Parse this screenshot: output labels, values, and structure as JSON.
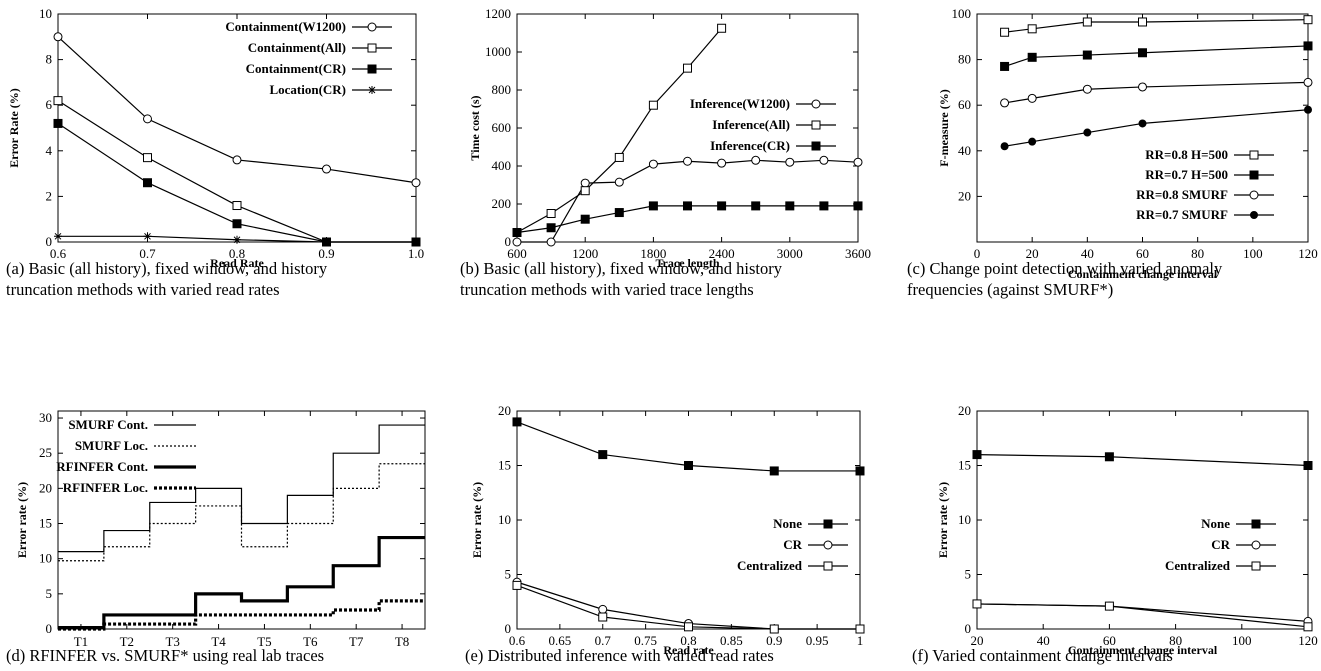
{
  "chart_data": [
    {
      "type": "line",
      "xlabel": "Read Rate",
      "ylabel": "Error Rate (%)",
      "x_ticks": [
        "0.6",
        "0.7",
        "0.8",
        "0.9",
        "1.0"
      ],
      "y_ticks": [
        "0",
        "2",
        "4",
        "6",
        "8",
        "10"
      ],
      "xlim": [
        0.6,
        1.0
      ],
      "ylim": [
        0,
        10
      ],
      "legend_position": "top-right",
      "caption": [
        "(a) Basic (all history), fixed window, and history",
        "truncation methods with varied read rates"
      ],
      "series": [
        {
          "name": "Containment(W1200)",
          "marker": "circle",
          "x": [
            0.6,
            0.7,
            0.8,
            0.9,
            1.0
          ],
          "y": [
            9.0,
            5.4,
            3.6,
            3.2,
            2.6
          ]
        },
        {
          "name": "Containment(All)",
          "marker": "square",
          "x": [
            0.6,
            0.7,
            0.8,
            0.9,
            1.0
          ],
          "y": [
            6.2,
            3.7,
            1.6,
            0,
            0
          ]
        },
        {
          "name": "Containment(CR)",
          "marker": "filled-square",
          "x": [
            0.6,
            0.7,
            0.8,
            0.9,
            1.0
          ],
          "y": [
            5.2,
            2.6,
            0.8,
            0,
            0
          ]
        },
        {
          "name": "Location(CR)",
          "marker": "star",
          "x": [
            0.6,
            0.7,
            0.8,
            0.9,
            1.0
          ],
          "y": [
            0.25,
            0.25,
            0.1,
            0,
            0
          ]
        }
      ]
    },
    {
      "type": "line",
      "xlabel": "Trace length",
      "ylabel": "Time cost (s)",
      "x_ticks": [
        "600",
        "1200",
        "1800",
        "2400",
        "3000",
        "3600"
      ],
      "y_ticks": [
        "0",
        "200",
        "400",
        "600",
        "800",
        "1000",
        "1200"
      ],
      "xlim": [
        600,
        3600
      ],
      "ylim": [
        0,
        1200
      ],
      "legend_position": "center-right",
      "caption": [
        "(b) Basic (all history), fixed window, and history",
        "truncation methods with varied trace lengths"
      ],
      "series": [
        {
          "name": "Inference(W1200)",
          "marker": "circle",
          "x": [
            600,
            900,
            1200,
            1500,
            1800,
            2100,
            2400,
            2700,
            3000,
            3300,
            3600
          ],
          "y": [
            0,
            0,
            310,
            315,
            410,
            425,
            415,
            430,
            420,
            430,
            420
          ]
        },
        {
          "name": "Inference(All)",
          "marker": "square",
          "x": [
            600,
            900,
            1200,
            1500,
            1800,
            2100,
            2400
          ],
          "y": [
            50,
            150,
            270,
            445,
            720,
            915,
            1125
          ]
        },
        {
          "name": "Inference(CR)",
          "marker": "filled-square",
          "x": [
            600,
            900,
            1200,
            1500,
            1800,
            2100,
            2400,
            2700,
            3000,
            3300,
            3600
          ],
          "y": [
            50,
            75,
            120,
            155,
            190,
            190,
            190,
            190,
            190,
            190,
            190
          ]
        }
      ]
    },
    {
      "type": "line",
      "xlabel": "Containment change interval",
      "ylabel": "F-measure (%)",
      "x_ticks": [
        "0",
        "20",
        "40",
        "60",
        "80",
        "100",
        "120"
      ],
      "y_ticks": [
        "20",
        "40",
        "60",
        "80",
        "100"
      ],
      "xlim": [
        0,
        120
      ],
      "ylim": [
        0,
        100
      ],
      "legend_position": "bottom-right",
      "caption": [
        "(c) Change point detection with varied anomaly",
        "frequencies (against SMURF*)"
      ],
      "series": [
        {
          "name": "RR=0.8 H=500",
          "marker": "square",
          "x": [
            10,
            20,
            40,
            60,
            120
          ],
          "y": [
            92,
            93.5,
            96.5,
            96.5,
            97.5
          ]
        },
        {
          "name": "RR=0.7 H=500",
          "marker": "filled-square",
          "x": [
            10,
            20,
            40,
            60,
            120
          ],
          "y": [
            77,
            81,
            82,
            83,
            86
          ]
        },
        {
          "name": "RR=0.8 SMURF",
          "marker": "circle",
          "x": [
            10,
            20,
            40,
            60,
            120
          ],
          "y": [
            61,
            63,
            67,
            68,
            70
          ]
        },
        {
          "name": "RR=0.7 SMURF",
          "marker": "filled-circle",
          "x": [
            10,
            20,
            40,
            60,
            120
          ],
          "y": [
            42,
            44,
            48,
            52,
            58
          ]
        }
      ]
    },
    {
      "type": "step",
      "xlabel": "",
      "ylabel": "Error rate (%)",
      "categories": [
        "T1",
        "T2",
        "T3",
        "T4",
        "T5",
        "T6",
        "T7",
        "T8"
      ],
      "y_ticks": [
        "0",
        "5",
        "10",
        "15",
        "20",
        "25",
        "30"
      ],
      "ylim": [
        0,
        31
      ],
      "legend_position": "top-left",
      "caption": [
        "(d) RFINFER vs. SMURF* using real lab traces"
      ],
      "series": [
        {
          "name": "SMURF Cont.",
          "style": "thin-solid",
          "values": [
            11,
            14,
            18,
            20,
            15,
            19,
            25,
            29
          ]
        },
        {
          "name": "SMURF Loc.",
          "style": "thin-dotted",
          "values": [
            9.7,
            11.7,
            15,
            17.5,
            11.7,
            15,
            20,
            23.5
          ]
        },
        {
          "name": "RFINFER Cont.",
          "style": "thick-solid",
          "values": [
            0.2,
            2,
            2,
            5,
            4,
            6,
            9,
            13
          ]
        },
        {
          "name": "RFINFER Loc.",
          "style": "thick-dotted",
          "values": [
            0,
            0.7,
            0.7,
            2,
            2,
            2,
            2.7,
            4
          ]
        }
      ]
    },
    {
      "type": "line",
      "xlabel": "Read rate",
      "ylabel": "Error rate (%)",
      "x_ticks": [
        "0.6",
        "0.65",
        "0.7",
        "0.75",
        "0.8",
        "0.85",
        "0.9",
        "0.95",
        "1"
      ],
      "y_ticks": [
        "0",
        "5",
        "10",
        "15",
        "20"
      ],
      "xlim": [
        0.6,
        1.0
      ],
      "ylim": [
        0,
        20
      ],
      "legend_position": "center-right",
      "caption": [
        "(e) Distributed inference with varied read rates"
      ],
      "series": [
        {
          "name": "None",
          "marker": "filled-square",
          "x": [
            0.6,
            0.7,
            0.8,
            0.9,
            1.0
          ],
          "y": [
            19,
            16,
            15,
            14.5,
            14.5
          ]
        },
        {
          "name": "CR",
          "marker": "circle",
          "x": [
            0.6,
            0.7,
            0.8,
            0.9,
            1.0
          ],
          "y": [
            4.3,
            1.8,
            0.5,
            0,
            0
          ]
        },
        {
          "name": "Centralized",
          "marker": "square",
          "x": [
            0.6,
            0.7,
            0.8,
            0.9,
            1.0
          ],
          "y": [
            4.0,
            1.1,
            0.2,
            0,
            0
          ]
        }
      ]
    },
    {
      "type": "line",
      "xlabel": "Containment change interval",
      "ylabel": "Error rate (%)",
      "x_ticks": [
        "20",
        "40",
        "60",
        "80",
        "100",
        "120"
      ],
      "y_ticks": [
        "0",
        "5",
        "10",
        "15",
        "20"
      ],
      "xlim": [
        20,
        120
      ],
      "ylim": [
        0,
        20
      ],
      "legend_position": "center-right",
      "caption": [
        "(f) Varied containment change intervals"
      ],
      "series": [
        {
          "name": "None",
          "marker": "filled-square",
          "x": [
            20,
            60,
            120
          ],
          "y": [
            16,
            15.8,
            15
          ]
        },
        {
          "name": "CR",
          "marker": "circle",
          "x": [
            20,
            60,
            120
          ],
          "y": [
            2.3,
            2.1,
            0.7
          ]
        },
        {
          "name": "Centralized",
          "marker": "square",
          "x": [
            20,
            60,
            120
          ],
          "y": [
            2.3,
            2.1,
            0.2
          ]
        }
      ]
    }
  ]
}
